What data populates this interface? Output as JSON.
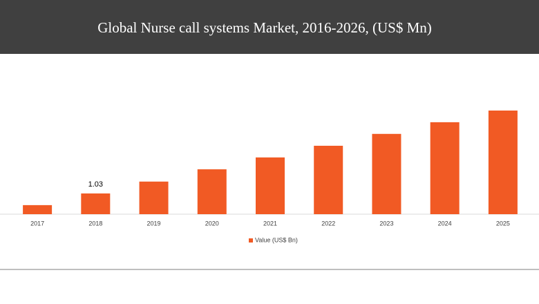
{
  "chart_data": {
    "type": "bar",
    "title": "Global Nurse call systems Market, 2016-2026, (US$ Mn)",
    "categories": [
      "2017",
      "2018",
      "2019",
      "2020",
      "2021",
      "2022",
      "2023",
      "2024",
      "2025"
    ],
    "series": [
      {
        "name": "Value (US$ Bn)",
        "color": "#f15a24",
        "values": [
          0.45,
          1.03,
          1.62,
          2.23,
          2.82,
          3.4,
          3.99,
          4.57,
          5.15
        ],
        "value_labels": [
          null,
          "1.03",
          null,
          null,
          null,
          null,
          null,
          null,
          null
        ]
      }
    ],
    "legend": "bottom"
  }
}
